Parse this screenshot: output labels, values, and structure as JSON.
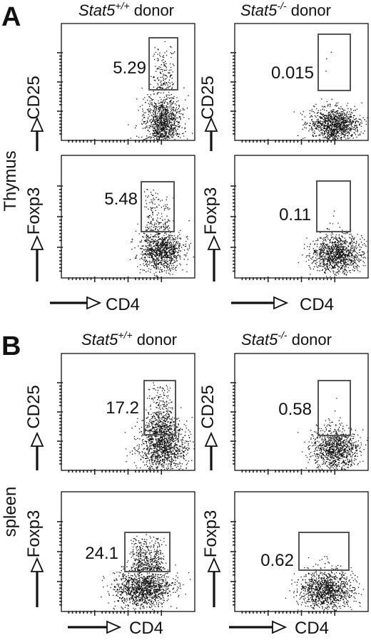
{
  "sections": [
    {
      "letter": "A",
      "tissue": "Thymus",
      "columns": [
        {
          "genotype": "Stat5",
          "superscript": "+/+",
          "suffix": " donor"
        },
        {
          "genotype": "Stat5",
          "superscript": "-/-",
          "suffix": " donor"
        }
      ],
      "x_label": "CD4",
      "rows": [
        {
          "y_label": "CD25",
          "percents": [
            "5.29",
            "0.015"
          ]
        },
        {
          "y_label": "Foxp3",
          "percents": [
            "5.48",
            "0.11"
          ]
        }
      ]
    },
    {
      "letter": "B",
      "tissue": "spleen",
      "columns": [
        {
          "genotype": "Stat5",
          "superscript": "+/+",
          "suffix": " donor"
        },
        {
          "genotype": "Stat5",
          "superscript": "-/-",
          "suffix": " donor"
        }
      ],
      "x_label": "CD4",
      "rows": [
        {
          "y_label": "CD25",
          "percents": [
            "17.2",
            "0.58"
          ]
        },
        {
          "y_label": "Foxp3",
          "percents": [
            "24.1",
            "0.62"
          ]
        }
      ]
    }
  ]
}
